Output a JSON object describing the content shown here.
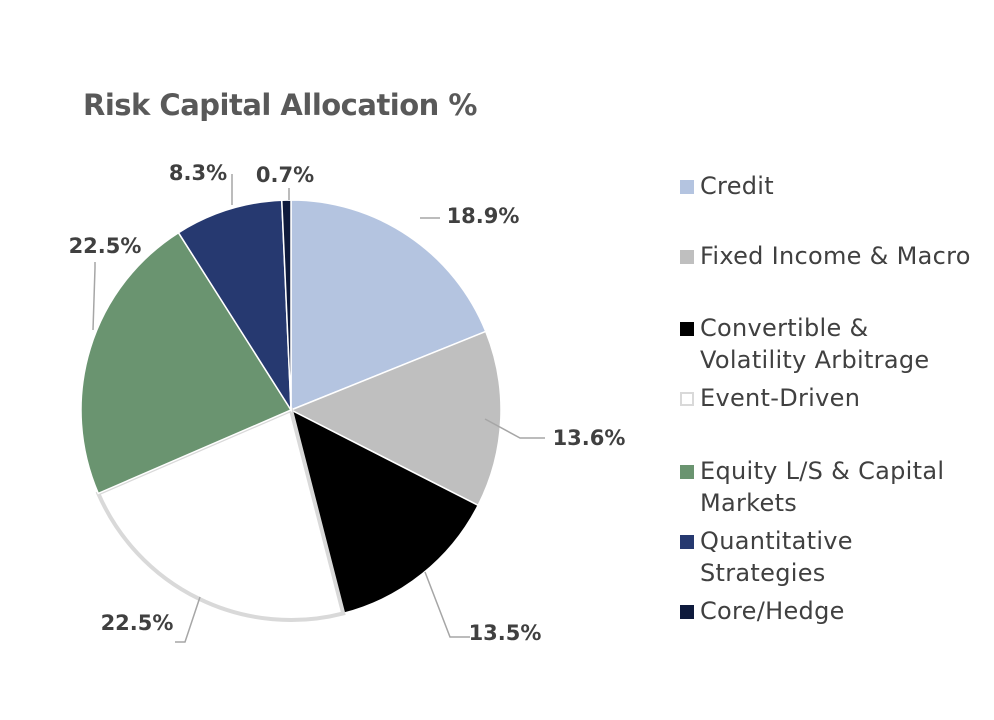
{
  "chart_data": {
    "type": "pie",
    "title": "Risk Capital Allocation %",
    "slices": [
      {
        "name": "Credit",
        "value": 18.9,
        "label": "18.9%",
        "color": "#B4C4E0"
      },
      {
        "name": "Fixed Income & Macro",
        "value": 13.6,
        "label": "13.6%",
        "color": "#BFBFBF"
      },
      {
        "name": "Convertible & Volatility Arbitrage",
        "value": 13.5,
        "label": "13.5%",
        "color": "#000000"
      },
      {
        "name": "Event-Driven",
        "value": 22.5,
        "label": "22.5%",
        "color": "#FFFFFF"
      },
      {
        "name": "Equity L/S & Capital Markets",
        "value": 22.5,
        "label": "22.5%",
        "color": "#6A9470"
      },
      {
        "name": "Quantitative Strategies",
        "value": 8.3,
        "label": "8.3%",
        "color": "#263970"
      },
      {
        "name": "Core/Hedge",
        "value": 0.7,
        "label": "0.7%",
        "color": "#0E1A3C"
      }
    ],
    "legend_position": "right"
  }
}
